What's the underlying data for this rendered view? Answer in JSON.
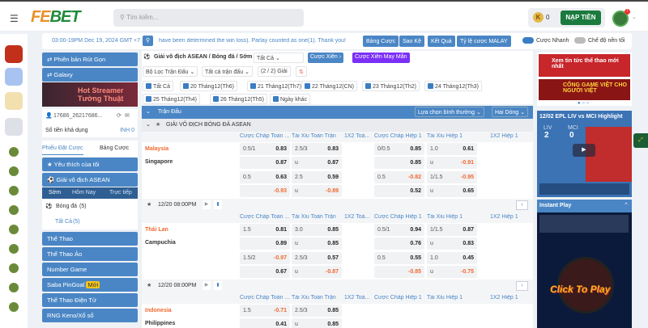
{
  "header": {
    "logo_fe": "FE",
    "logo_bet": "BET",
    "search_placeholder": "Tìm kiếm...",
    "coin_icon": "K",
    "balance": "0",
    "deposit": "NẠP TIỀN",
    "avatar_badge": "!"
  },
  "info": {
    "time": "03:00-19PM Dec 19, 2024 GMT +7",
    "ticker": "have been determined the win loss). Parlay counted as one(1). Thank you!",
    "buttons": [
      "Bảng Cược",
      "Sao Kê",
      "Kết Quả",
      "Tỷ lệ cược MALAY"
    ],
    "quick_bet": "Cược Nhanh",
    "quick_bet_on": true,
    "dark_mode": "Chế độ nền tối",
    "dark_mode_on": false
  },
  "left": {
    "promo1": "Phiên bản Rút Gọn",
    "promo2": "Galaxy",
    "banner": "Hot Streamer Tường Thuật",
    "user": "17686_26217686...",
    "balance_label": "Số tiền khả dụng",
    "balance_value": "INH 0",
    "tabs": [
      "Phiếu Đặt Cược",
      "Bảng Cược"
    ],
    "favorites": "Yêu thích của tôi",
    "asean": "Giải vô địch ASEAN",
    "time_tabs": [
      "Sớm",
      "Hôm Nay",
      "Trực tiếp"
    ],
    "sport": "Bóng đá",
    "sport_count": "(5)",
    "all": "Tất Cả",
    "all_count": "(5)",
    "menu": [
      "Thể Thao",
      "Thể Thao Ảo",
      "Number Game",
      "Saba PinGoal",
      "Thể Thao Điện Tử",
      "RNG Keno/Xổ số"
    ],
    "new_badge": "Mới"
  },
  "main": {
    "title": "Giải vô địch ASEAN / Bóng đá / Sớm",
    "title_select": "Tất Cả",
    "parlay": "Cược Xiên",
    "lucky_parlay": "Cược Xiên May Mắn",
    "filters": [
      "Bộ Lọc Trận Đấu",
      "Tất cả trận đấu",
      "(2 / 2) Giải"
    ],
    "dates": [
      "Tất Cả",
      "20 Tháng12(Th6)",
      "21 Tháng12(Th7)",
      "22 Tháng12(CN)",
      "23 Tháng12(Th2)",
      "24 Tháng12(Th3)",
      "25 Tháng12(Th4)",
      "26 Tháng12(Th5)",
      "Ngày khác"
    ],
    "section": "Trận Đấu",
    "select_mode": "Lựa chọn bình thường",
    "lines": "Hai Dòng",
    "league": "GIẢI VÔ ĐỊCH BÓNG ĐÁ ASEAN",
    "columns": [
      "Cược Chấp Toàn ...",
      "Tài Xỉu Toàn Trận",
      "1X2 Toà...",
      "Cược Chấp Hiệp 1",
      "Tài Xỉu Hiệp 1",
      "1X2 Hiệp 1"
    ],
    "matches": [
      {
        "home": "Malaysia",
        "away": "Singapore",
        "time": "12/20 08:00PM",
        "rows": [
          [
            [
              "0.5/1",
              "0.83"
            ],
            [
              "2.5/3",
              "0.83"
            ],
            null,
            [
              "0/0.5",
              "0.85"
            ],
            [
              "1.0",
              "0.61"
            ]
          ],
          [
            [
              "",
              "0.87"
            ],
            [
              "u",
              "0.87"
            ],
            null,
            [
              "",
              "0.85"
            ],
            [
              "u",
              "-0.91"
            ]
          ],
          [
            [
              "0.5",
              "0.63"
            ],
            [
              "2.5",
              "0.59"
            ],
            null,
            [
              "0.5",
              "-0.82"
            ],
            [
              "1/1.5",
              "-0.95"
            ]
          ],
          [
            [
              "",
              "-0.93"
            ],
            [
              "u",
              "-0.89"
            ],
            null,
            [
              "",
              "0.52"
            ],
            [
              "u",
              "0.65"
            ]
          ]
        ]
      },
      {
        "home": "Thái Lan",
        "away": "Campuchia",
        "time": "12/20 08:00PM",
        "rows": [
          [
            [
              "1.5",
              "0.81"
            ],
            [
              "3.0",
              "0.85"
            ],
            null,
            [
              "0.5/1",
              "0.94"
            ],
            [
              "1/1.5",
              "0.87"
            ]
          ],
          [
            [
              "",
              "0.89"
            ],
            [
              "u",
              "0.85"
            ],
            null,
            [
              "",
              "0.76"
            ],
            [
              "u",
              "0.83"
            ]
          ],
          [
            [
              "1.5/2",
              "-0.97"
            ],
            [
              "2.5/3",
              "0.57"
            ],
            null,
            [
              "0.5",
              "0.55"
            ],
            [
              "1.0",
              "0.45"
            ]
          ],
          [
            [
              "",
              "0.67"
            ],
            [
              "u",
              "-0.87"
            ],
            null,
            [
              "",
              "-0.85"
            ],
            [
              "u",
              "-0.75"
            ]
          ]
        ]
      },
      {
        "home": "Indonesia",
        "away": "Philippines",
        "time": "",
        "rows": [
          [
            [
              "1.5",
              "-0.71"
            ],
            [
              "2.5/3",
              "0.85"
            ]
          ],
          [
            [
              "",
              "0.41"
            ],
            [
              "u",
              "0.85"
            ]
          ]
        ]
      }
    ]
  },
  "right": {
    "ad1": "Xem tin tức thể thao mới nhất",
    "ad2": "CỔNG GAME VIỆT CHO NGƯỜI VIỆT",
    "highlight_title": "12/02 EPL LIV vs MCI Highlight",
    "home_abbr": "LIV",
    "away_abbr": "MCI",
    "home_score": "2",
    "away_score": "0",
    "instant_play": "Instant Play",
    "click_to_play": "Click To Play"
  },
  "colors": {
    "accent": "#4a86c5",
    "brand_green": "#1b7a3e",
    "negative": "#f0692f",
    "home_team": "#f0692f",
    "purple": "#7b2ff7"
  }
}
